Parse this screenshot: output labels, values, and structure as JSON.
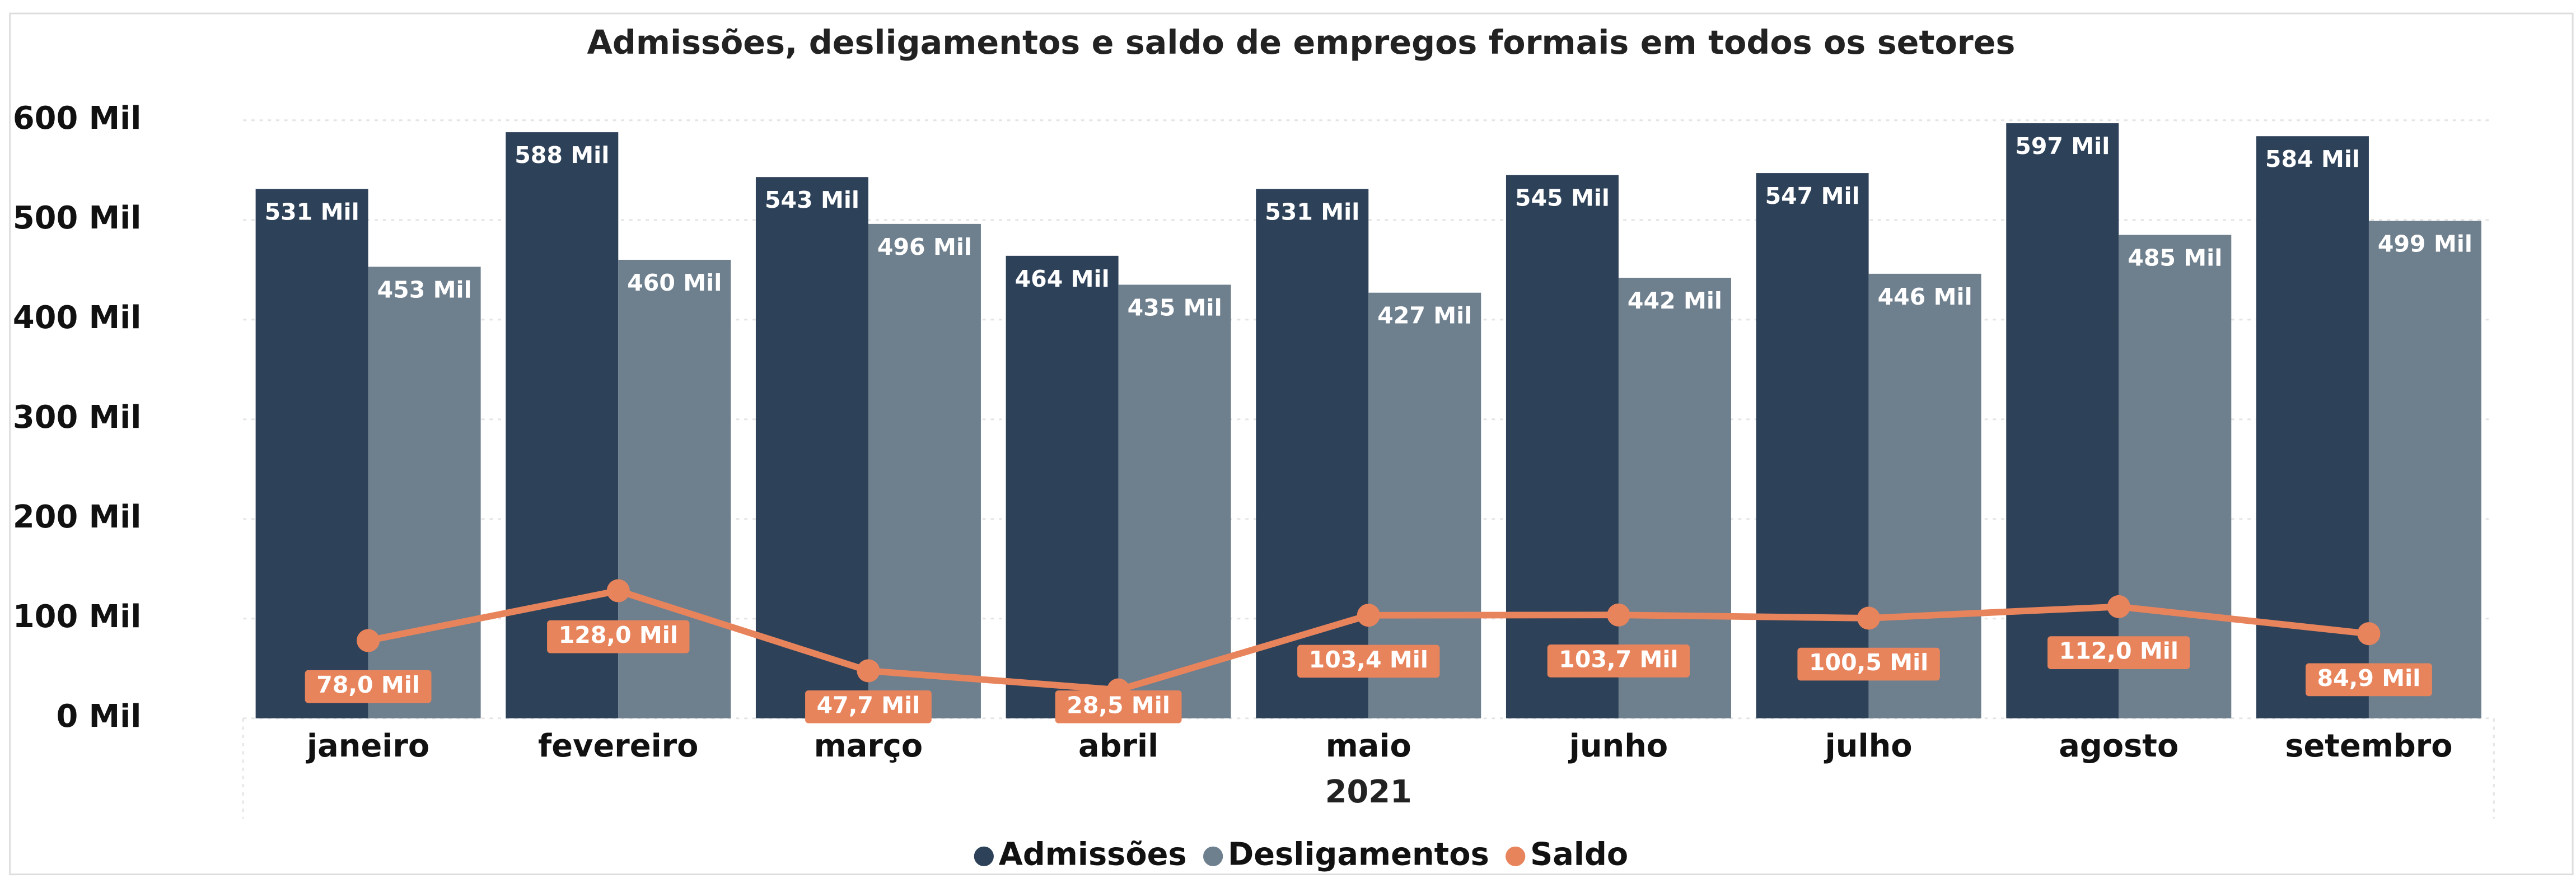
{
  "chart_data": {
    "type": "bar",
    "title": "Admissões, desligamentos e saldo de empregos formais em todos os setores",
    "x_label": "2021",
    "categories": [
      "janeiro",
      "fevereiro",
      "março",
      "abril",
      "maio",
      "junho",
      "julho",
      "agosto",
      "setembro"
    ],
    "series": [
      {
        "name": "Admissões",
        "type": "bar",
        "color": "#2d4159",
        "values": [
          531,
          588,
          543,
          464,
          531,
          545,
          547,
          597,
          584
        ],
        "value_labels": [
          "531 Mil",
          "588 Mil",
          "543 Mil",
          "464 Mil",
          "531 Mil",
          "545 Mil",
          "547 Mil",
          "597 Mil",
          "584 Mil"
        ]
      },
      {
        "name": "Desligamentos",
        "type": "bar",
        "color": "#6e7f8e",
        "values": [
          453,
          460,
          496,
          435,
          427,
          442,
          446,
          485,
          499
        ],
        "value_labels": [
          "453 Mil",
          "460 Mil",
          "496 Mil",
          "435 Mil",
          "427 Mil",
          "442 Mil",
          "446 Mil",
          "485 Mil",
          "499 Mil"
        ]
      },
      {
        "name": "Saldo",
        "type": "line",
        "color": "#e8845c",
        "values": [
          78.0,
          128.0,
          47.7,
          28.5,
          103.4,
          103.7,
          100.5,
          112.0,
          84.9
        ],
        "value_labels": [
          "78,0 Mil",
          "128,0 Mil",
          "47,7 Mil",
          "28,5 Mil",
          "103,4 Mil",
          "103,7 Mil",
          "100,5 Mil",
          "112,0 Mil",
          "84,9 Mil"
        ]
      }
    ],
    "ylim": [
      0,
      600
    ],
    "yticks": [
      {
        "value": 0,
        "label": "0 Mil"
      },
      {
        "value": 100,
        "label": "100 Mil"
      },
      {
        "value": 200,
        "label": "200 Mil"
      },
      {
        "value": 300,
        "label": "300 Mil"
      },
      {
        "value": 400,
        "label": "400 Mil"
      },
      {
        "value": 500,
        "label": "500 Mil"
      },
      {
        "value": 600,
        "label": "600 Mil"
      }
    ],
    "grid": true,
    "legend": "bottom"
  }
}
